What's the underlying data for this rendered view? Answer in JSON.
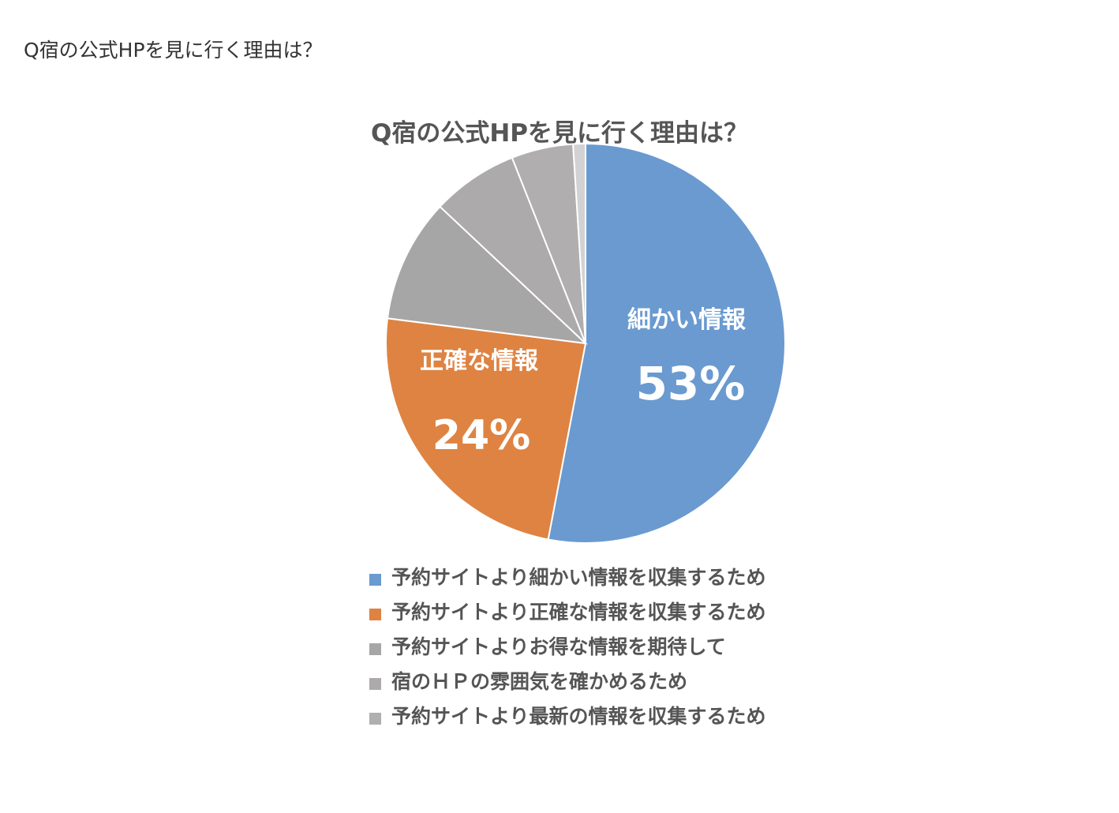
{
  "page": {
    "title": "Q宿の公式HPを見に行く理由は？"
  },
  "chart_data": {
    "type": "pie",
    "title": "Q宿の公式HPを見に行く理由は？",
    "slices": [
      {
        "legend": "予約サイトより細かい情報を収集するため",
        "label": "細かい情報",
        "value_label": "53%",
        "value": 53,
        "color": "#6a9ad0"
      },
      {
        "legend": "予約サイトより正確な情報を収集するため",
        "label": "正確な情報",
        "value_label": "24%",
        "value": 24,
        "color": "#df8342"
      },
      {
        "legend": "予約サイトよりお得な情報を期待して",
        "value": 10,
        "color": "#a6a6a6"
      },
      {
        "legend": "宿のＨＰの雰囲気を確かめるため",
        "value": 7,
        "color": "#acaaaa"
      },
      {
        "legend": "予約サイトより最新の情報を収集するため",
        "value": 5,
        "color": "#b0aeae"
      },
      {
        "value": 1,
        "color": "#d2d2d4"
      }
    ],
    "legend_position": "bottom",
    "start_angle": "top, clockwise"
  }
}
